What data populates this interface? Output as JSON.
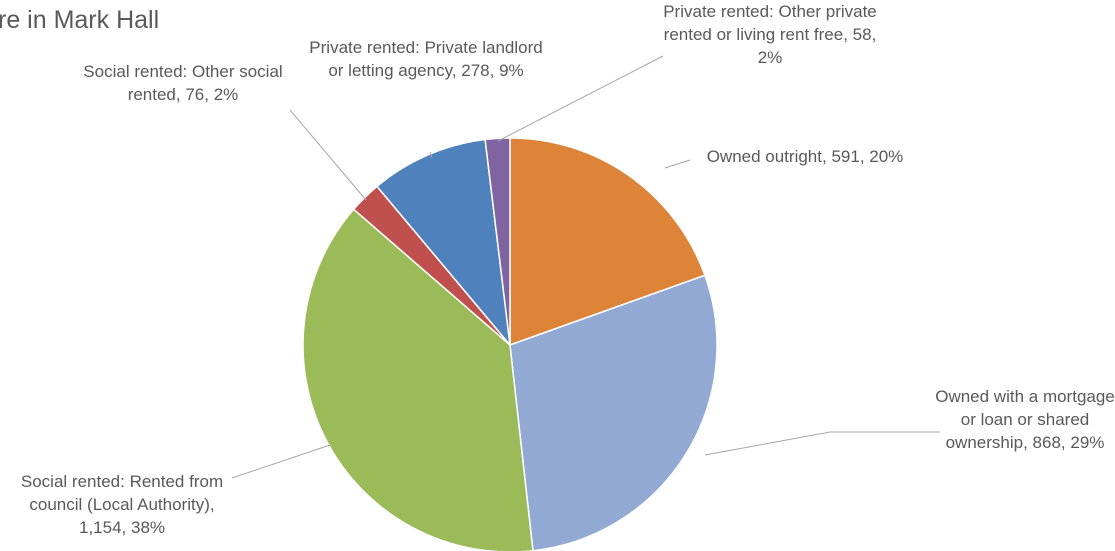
{
  "chart_data": {
    "type": "pie",
    "title": "re in Mark Hall",
    "categories": [
      "Owned outright",
      "Owned with a mortgage or loan or shared ownership",
      "Social rented: Rented from council (Local Authority)",
      "Social rented: Other social rented",
      "Private rented: Private landlord or letting agency",
      "Private rented: Other private rented or living rent free"
    ],
    "values": [
      591,
      868,
      1154,
      76,
      278,
      58
    ],
    "value_labels": [
      "591",
      "868",
      "1,154",
      "76",
      "278",
      "58"
    ],
    "percents": [
      20,
      29,
      38,
      2,
      9,
      2
    ],
    "percent_labels": [
      "20%",
      "29%",
      "38%",
      "2%",
      "9%",
      "2%"
    ],
    "colors": [
      "#dd8439",
      "#91a9d3",
      "#9bbb59",
      "#c0504d",
      "#4f81bd",
      "#8064a2"
    ]
  }
}
